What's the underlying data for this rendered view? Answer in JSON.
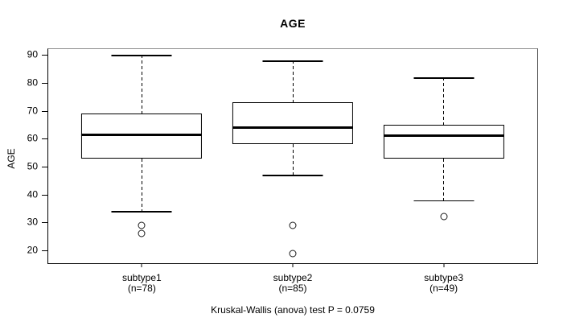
{
  "chart_data": {
    "type": "boxplot",
    "title": "AGE",
    "xlabel": "",
    "ylabel": "AGE",
    "annotation": "Kruskal-Wallis (anova) test P = 0.0759",
    "categories": [
      "subtype1",
      "subtype2",
      "subtype3"
    ],
    "series": [
      {
        "name": "subtype1",
        "sublabel": "(n=78)",
        "n": 78,
        "whisker_low": 34,
        "q1": 53,
        "median": 61.5,
        "q3": 69,
        "whisker_high": 90,
        "outliers": [
          29,
          26
        ]
      },
      {
        "name": "subtype2",
        "sublabel": "(n=85)",
        "n": 85,
        "whisker_low": 47,
        "q1": 58,
        "median": 64,
        "q3": 73,
        "whisker_high": 88,
        "outliers": [
          29,
          19
        ]
      },
      {
        "name": "subtype3",
        "sublabel": "(n=49)",
        "n": 49,
        "whisker_low": 38,
        "q1": 53,
        "median": 61,
        "q3": 65,
        "whisker_high": 82,
        "outliers": [
          32
        ]
      }
    ],
    "axes": {
      "xlim": [
        0.38,
        3.62
      ],
      "ylim": [
        15.4,
        92.1
      ],
      "yticks": [
        20,
        30,
        40,
        50,
        60,
        70,
        80,
        90
      ],
      "grid": false,
      "legend": "none",
      "box_width_units": 0.8,
      "cap_width_units": 0.4
    },
    "colors": {
      "box_fill": "#ffffff",
      "line": "#000000",
      "frame_top": "#8e8e8e",
      "frame_right": "#4a4a4a",
      "background": "#ffffff"
    }
  }
}
